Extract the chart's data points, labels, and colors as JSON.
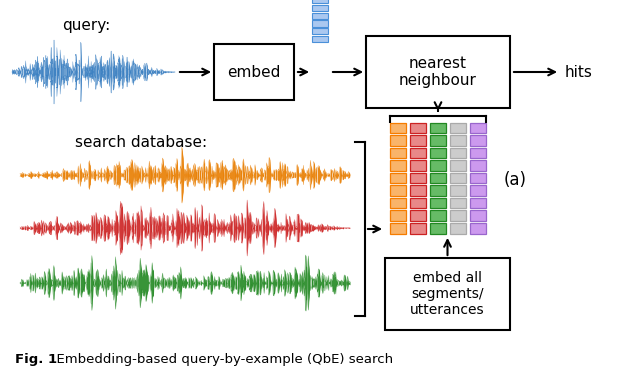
{
  "background_color": "#ffffff",
  "query_label": "query:",
  "search_db_label": "search database:",
  "embed_box_text": "embed",
  "nn_box_text": "nearest\nneighbour",
  "embed_all_box_text": "embed all\nsegments/\nutterances",
  "hits_label": "hits",
  "label_a": "(a)",
  "waveform_blue_color": "#3a7fc1",
  "waveform_orange_color": "#e87d00",
  "waveform_red_color": "#cc2222",
  "waveform_green_color": "#228822",
  "bar_colors": [
    "#f57c00",
    "#cc2222",
    "#228822",
    "#aaaaaa",
    "#9966cc"
  ],
  "bar_colors_light": [
    "#f9b46a",
    "#e88888",
    "#66bb66",
    "#cccccc",
    "#cc99ee"
  ],
  "caption_bold": "Fig. 1",
  "caption_normal": "  Embedding-based query-by-example (QbE) search"
}
